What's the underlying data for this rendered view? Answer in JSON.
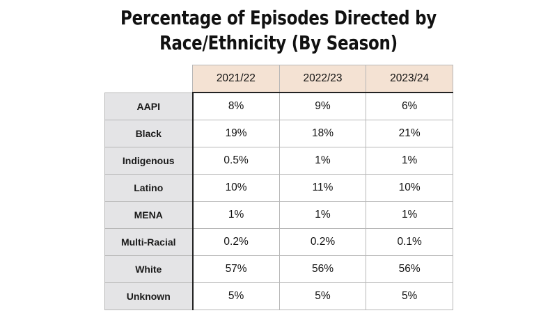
{
  "chart_data": {
    "type": "table",
    "title_lines": [
      "Percentage of Episodes Directed by",
      "Race/Ethnicity (By Season)"
    ],
    "columns": [
      "2021/22",
      "2022/23",
      "2023/24"
    ],
    "rows": [
      {
        "label": "AAPI",
        "values": [
          "8%",
          "9%",
          "6%"
        ]
      },
      {
        "label": "Black",
        "values": [
          "19%",
          "18%",
          "21%"
        ]
      },
      {
        "label": "Indigenous",
        "values": [
          "0.5%",
          "1%",
          "1%"
        ]
      },
      {
        "label": "Latino",
        "values": [
          "10%",
          "11%",
          "10%"
        ]
      },
      {
        "label": "MENA",
        "values": [
          "1%",
          "1%",
          "1%"
        ]
      },
      {
        "label": "Multi-Racial",
        "values": [
          "0.2%",
          "0.2%",
          "0.1%"
        ]
      },
      {
        "label": "White",
        "values": [
          "57%",
          "56%",
          "56%"
        ]
      },
      {
        "label": "Unknown",
        "values": [
          "5%",
          "5%",
          "5%"
        ]
      }
    ],
    "colors": {
      "header_fill": "#f4e2d3",
      "row_label_fill": "#e4e4e6",
      "grid_line": "#b7b7b7",
      "accent_line": "#222222"
    }
  }
}
